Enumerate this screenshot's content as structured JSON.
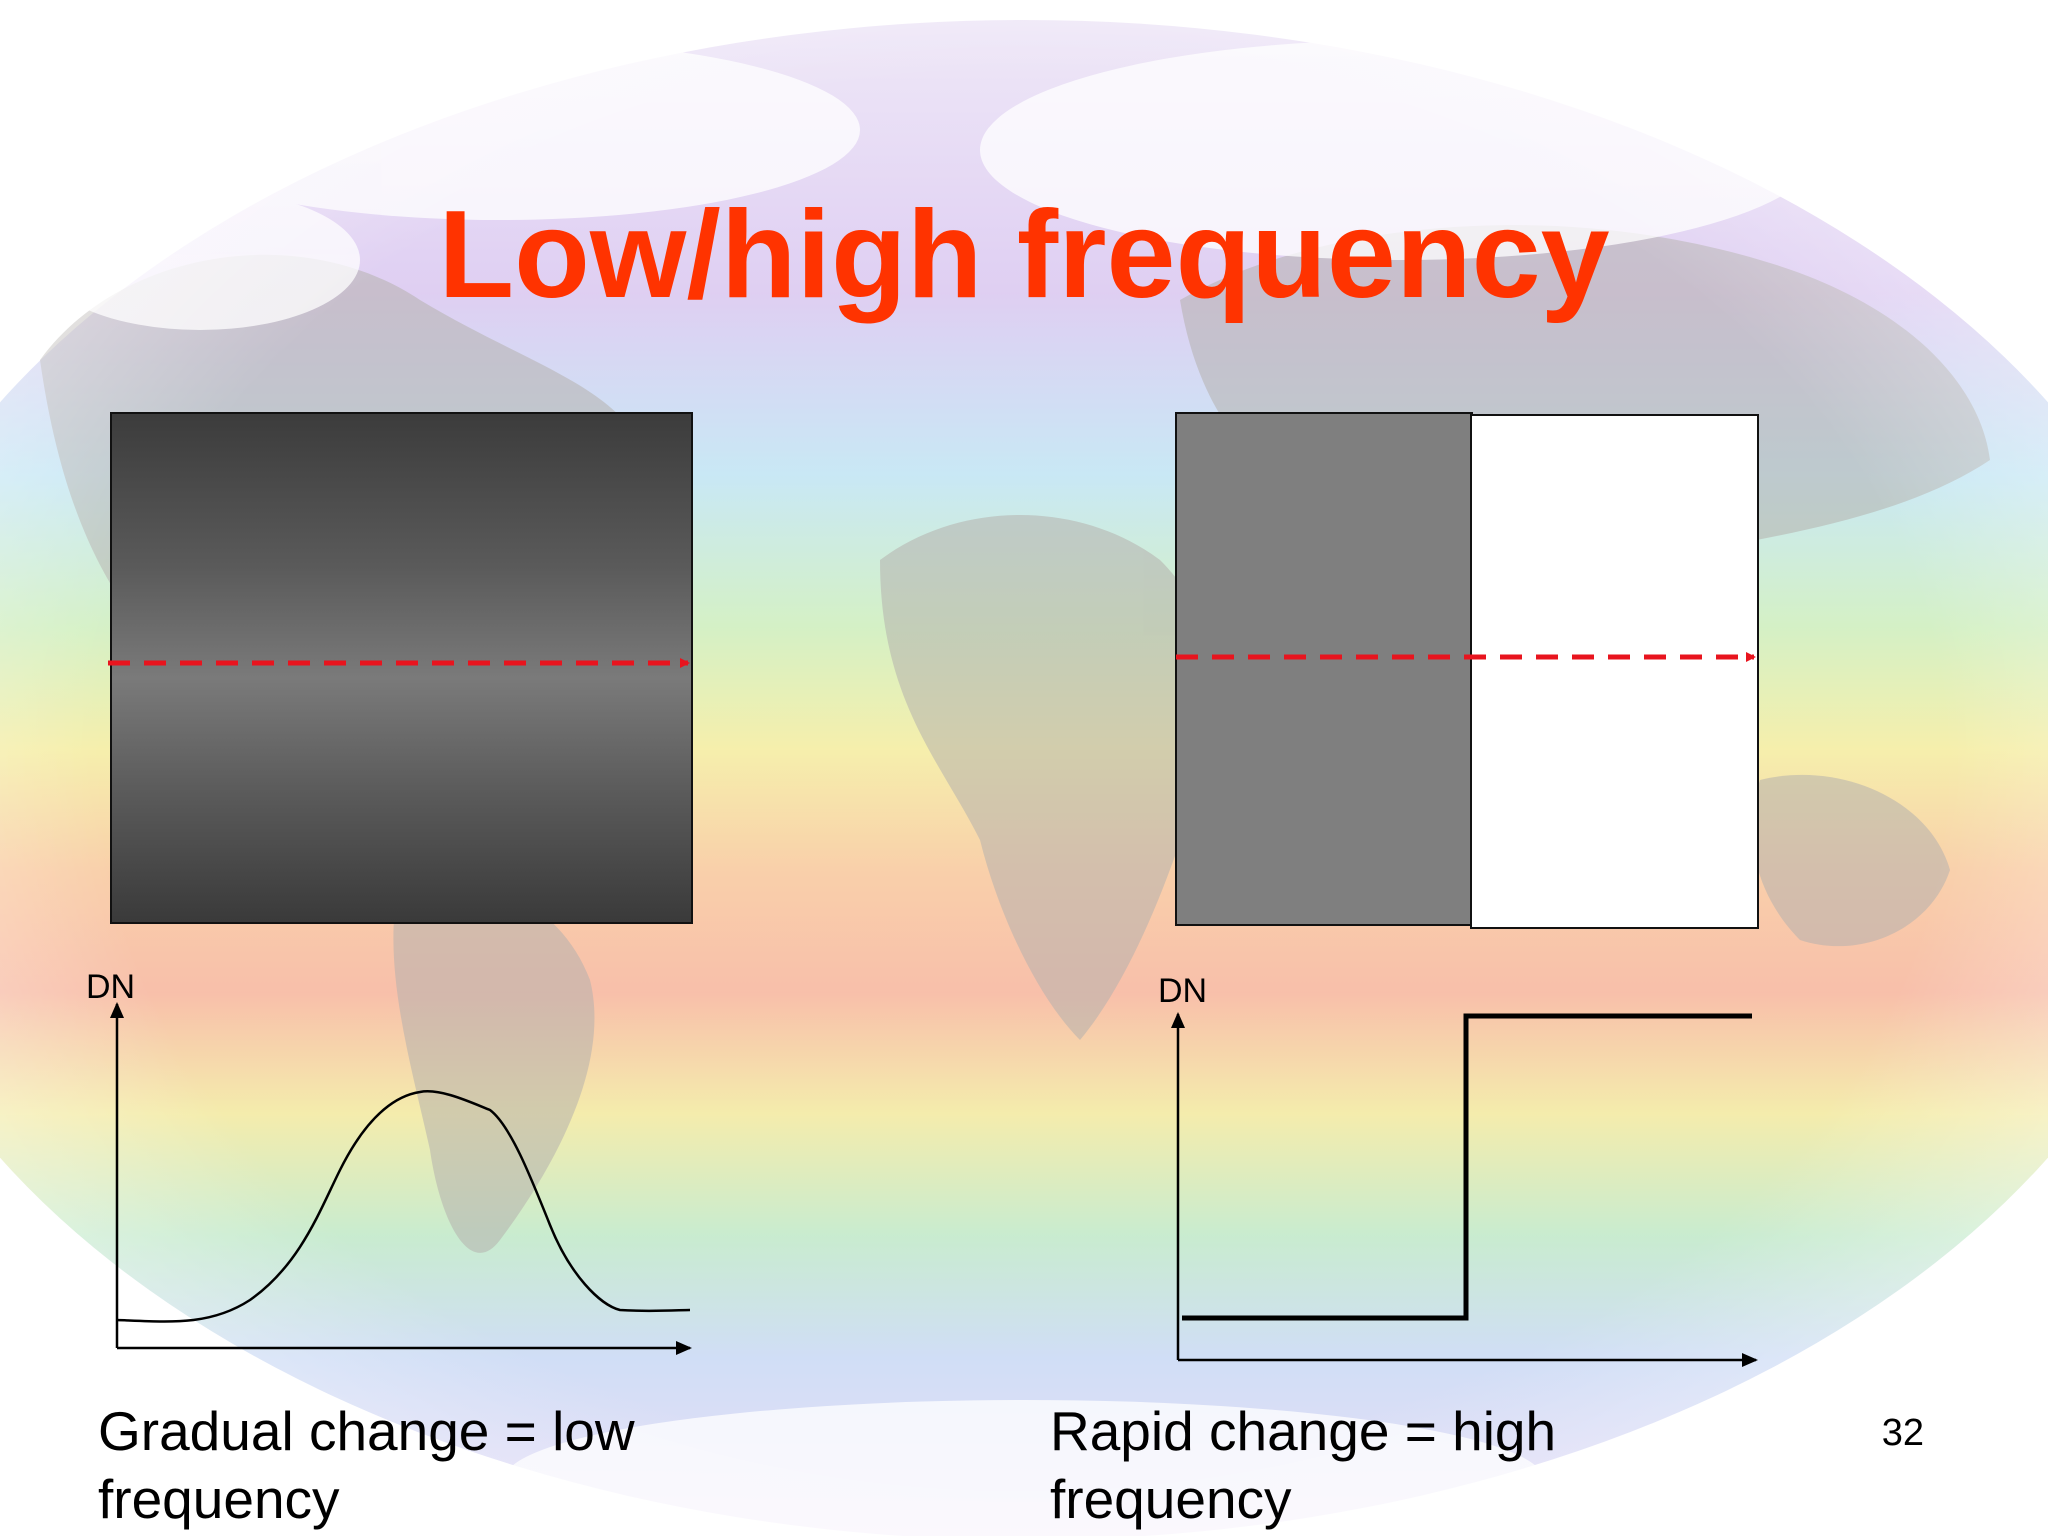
{
  "slide": {
    "title": "Low/high frequency",
    "title_color": "#ff3300",
    "page_number": "32"
  },
  "left_example": {
    "axis_label": "DN",
    "caption_line1": "Gradual change = low",
    "caption_line2": "frequency"
  },
  "right_example": {
    "axis_label": "DN",
    "caption_line1": "Rapid change = high",
    "caption_line2": "frequency"
  },
  "colors": {
    "arrow": "#e8141e",
    "curve": "#000000"
  },
  "background": "world-map-sea-surface-temperature"
}
